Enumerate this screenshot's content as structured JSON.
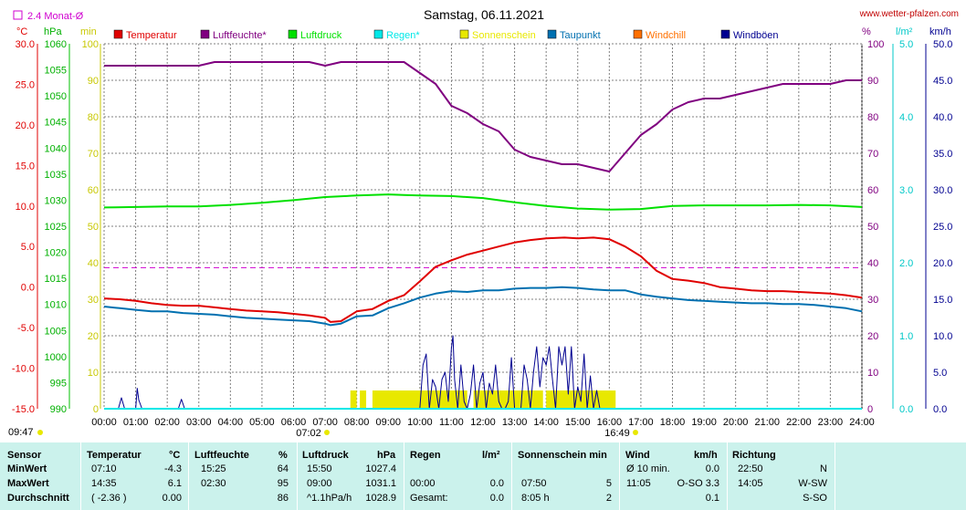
{
  "title": "Samstag, 06.11.2021",
  "website": "www.wetter-pfalzen.com",
  "monthly_avg_label": "2.4 Monat-Ø",
  "axis_units": {
    "temp": "°C",
    "pressure": "hPa",
    "minutes": "min",
    "percent": "%",
    "rain": "l/m²",
    "wind": "km/h"
  },
  "legend": [
    {
      "label": "Temperatur",
      "color": "#e00000"
    },
    {
      "label": "Luftfeuchte*",
      "color": "#800080"
    },
    {
      "label": "Luftdruck",
      "color": "#00e000"
    },
    {
      "label": "Regen*",
      "color": "#00e8e8"
    },
    {
      "label": "Sonnenschein",
      "color": "#e8e800"
    },
    {
      "label": "Taupunkt",
      "color": "#0070b0"
    },
    {
      "label": "Windchill",
      "color": "#ff7000"
    },
    {
      "label": "Windböen",
      "color": "#000090"
    }
  ],
  "x_ticks": [
    "00:00",
    "01:00",
    "02:00",
    "03:00",
    "04:00",
    "05:00",
    "06:00",
    "07:00",
    "08:00",
    "09:00",
    "10:00",
    "11:00",
    "12:00",
    "13:00",
    "14:00",
    "15:00",
    "16:00",
    "17:00",
    "18:00",
    "19:00",
    "20:00",
    "21:00",
    "22:00",
    "23:00",
    "24:00"
  ],
  "sun_markers": {
    "sunrise": "07:02",
    "sunset": "16:49"
  },
  "bottom_left_time": "09:47",
  "axes": {
    "temp_ticks": [
      "30.0",
      "25.0",
      "20.0",
      "15.0",
      "10.0",
      "5.0",
      "0.0",
      "-5.0",
      "-10.0",
      "-15.0"
    ],
    "pressure_ticks": [
      "1060",
      "1055",
      "1050",
      "1045",
      "1040",
      "1035",
      "1030",
      "1025",
      "1020",
      "1015",
      "1010",
      "1005",
      "1000",
      "995",
      "990"
    ],
    "minutes_ticks": [
      "100",
      "90",
      "80",
      "70",
      "60",
      "50",
      "40",
      "30",
      "20",
      "10",
      "0"
    ],
    "percent_ticks": [
      "100",
      "90",
      "80",
      "70",
      "60",
      "50",
      "40",
      "30",
      "20",
      "10",
      "0"
    ],
    "rain_ticks": [
      "5.0",
      "4.0",
      "3.0",
      "2.0",
      "1.0",
      "0.0"
    ],
    "wind_ticks": [
      "50.0",
      "45.0",
      "40.0",
      "35.0",
      "30.0",
      "25.0",
      "20.0",
      "15.0",
      "10.0",
      "5.0",
      "0.0"
    ]
  },
  "chart_data": {
    "type": "line",
    "x_unit": "hour",
    "x_range": [
      0,
      24
    ],
    "axes_ranges": {
      "temp": [
        -15,
        30
      ],
      "pressure": [
        990,
        1060
      ],
      "minutes": [
        0,
        100
      ],
      "humidity": [
        0,
        100
      ],
      "rain": [
        0,
        5
      ],
      "wind": [
        0,
        50
      ]
    },
    "grid": true,
    "reference_lines": [
      {
        "name": "2.4 Monat-Ø",
        "axis": "temp",
        "value": 2.4
      }
    ],
    "series": [
      {
        "name": "Temperatur",
        "axis": "temp",
        "color": "#e00000",
        "x": [
          0,
          0.5,
          1,
          1.5,
          2,
          2.5,
          3,
          3.5,
          4,
          4.5,
          5,
          5.5,
          6,
          6.5,
          7,
          7.17,
          7.5,
          8,
          8.5,
          9,
          9.5,
          10,
          10.5,
          11,
          11.5,
          12,
          12.5,
          13,
          13.5,
          14,
          14.58,
          15,
          15.5,
          16,
          16.5,
          17,
          17.5,
          18,
          18.5,
          19,
          19.5,
          20,
          20.5,
          21,
          21.5,
          22,
          22.5,
          23,
          23.5,
          24
        ],
        "y": [
          -1.4,
          -1.5,
          -1.7,
          -2.0,
          -2.2,
          -2.3,
          -2.3,
          -2.5,
          -2.7,
          -2.9,
          -3.0,
          -3.1,
          -3.3,
          -3.5,
          -3.8,
          -4.3,
          -4.2,
          -3.0,
          -2.7,
          -1.7,
          -1.0,
          0.7,
          2.5,
          3.3,
          4.0,
          4.5,
          5.0,
          5.5,
          5.8,
          6.0,
          6.1,
          6.0,
          6.1,
          5.9,
          5.0,
          3.8,
          2.0,
          1.0,
          0.8,
          0.5,
          0.0,
          -0.2,
          -0.4,
          -0.5,
          -0.5,
          -0.6,
          -0.7,
          -0.8,
          -1.0,
          -1.3
        ]
      },
      {
        "name": "Taupunkt",
        "axis": "temp",
        "color": "#0070b0",
        "x": [
          0,
          0.5,
          1,
          1.5,
          2,
          2.5,
          3,
          3.5,
          4,
          4.5,
          5,
          5.5,
          6,
          6.5,
          7,
          7.17,
          7.5,
          8,
          8.5,
          9,
          9.5,
          10,
          10.5,
          11,
          11.5,
          12,
          12.5,
          13,
          13.5,
          14,
          14.5,
          15,
          15.5,
          16,
          16.5,
          17,
          17.5,
          18,
          18.5,
          19,
          19.5,
          20,
          20.5,
          21,
          21.5,
          22,
          22.5,
          23,
          23.5,
          24
        ],
        "y": [
          -2.4,
          -2.6,
          -2.8,
          -3.0,
          -3.0,
          -3.2,
          -3.3,
          -3.4,
          -3.6,
          -3.8,
          -3.9,
          -4.0,
          -4.1,
          -4.2,
          -4.5,
          -4.7,
          -4.5,
          -3.6,
          -3.5,
          -2.6,
          -2.0,
          -1.3,
          -0.8,
          -0.5,
          -0.6,
          -0.4,
          -0.4,
          -0.2,
          -0.1,
          -0.1,
          0.0,
          -0.1,
          -0.3,
          -0.4,
          -0.4,
          -0.9,
          -1.2,
          -1.4,
          -1.6,
          -1.7,
          -1.8,
          -1.9,
          -2.0,
          -2.0,
          -2.1,
          -2.1,
          -2.2,
          -2.4,
          -2.6,
          -3.0
        ]
      },
      {
        "name": "Luftdruck",
        "axis": "pressure",
        "color": "#00e000",
        "x": [
          0,
          1,
          2,
          3,
          4,
          5,
          6,
          7,
          8,
          9,
          9.5,
          10,
          11,
          12,
          13,
          14,
          15,
          16,
          17,
          18,
          19,
          20,
          21,
          22,
          23,
          24
        ],
        "y": [
          1028.6,
          1028.7,
          1028.8,
          1028.8,
          1029.1,
          1029.5,
          1030.0,
          1030.6,
          1030.9,
          1031.1,
          1031.0,
          1030.9,
          1030.8,
          1030.4,
          1029.6,
          1028.9,
          1028.4,
          1028.2,
          1028.3,
          1028.9,
          1029.0,
          1029.0,
          1029.0,
          1029.1,
          1029.0,
          1028.7
        ]
      },
      {
        "name": "Luftfeuchte*",
        "axis": "humidity",
        "color": "#800080",
        "x": [
          0,
          1,
          2,
          3,
          3.5,
          4,
          5,
          6,
          6.5,
          7,
          7.5,
          8,
          9,
          9.5,
          10,
          10.5,
          11,
          11.5,
          12,
          12.5,
          13,
          13.5,
          14,
          14.5,
          15,
          15.5,
          16,
          16.5,
          17,
          17.5,
          18,
          18.5,
          19,
          19.5,
          20,
          20.5,
          21,
          21.5,
          22,
          22.5,
          23,
          23.5,
          24
        ],
        "y": [
          94,
          94,
          94,
          94,
          95,
          95,
          95,
          95,
          95,
          94,
          95,
          95,
          95,
          95,
          92,
          89,
          83,
          81,
          78,
          76,
          71,
          69,
          68,
          67,
          67,
          66,
          65,
          70,
          75,
          78,
          82,
          84,
          85,
          85,
          86,
          87,
          88,
          89,
          89,
          89,
          89,
          90,
          90
        ]
      },
      {
        "name": "Windböen",
        "axis": "wind",
        "color": "#000090",
        "x": [
          0,
          0.45,
          0.55,
          0.65,
          1,
          1.05,
          1.1,
          1.2,
          2,
          2.35,
          2.45,
          2.55,
          3,
          10,
          10.1,
          10.2,
          10.3,
          10.4,
          10.5,
          10.6,
          10.7,
          10.8,
          10.9,
          11,
          11.05,
          11.1,
          11.2,
          11.3,
          11.4,
          11.5,
          11.6,
          11.7,
          11.8,
          11.9,
          12,
          12.1,
          12.2,
          12.3,
          12.4,
          12.5,
          12.6,
          12.7,
          12.8,
          12.9,
          13,
          13.1,
          13.2,
          13.3,
          13.4,
          13.5,
          13.6,
          13.7,
          13.8,
          13.9,
          14,
          14.1,
          14.2,
          14.3,
          14.4,
          14.5,
          14.6,
          14.7,
          14.8,
          14.9,
          15,
          15.1,
          15.2,
          15.3,
          15.4,
          15.5,
          15.6,
          15.7,
          15.8,
          15.9,
          16,
          24
        ],
        "y": [
          0,
          0,
          1.5,
          0,
          0,
          2.8,
          1.2,
          0,
          0,
          0,
          1.3,
          0,
          0,
          0,
          6,
          7.5,
          0,
          4,
          3,
          0,
          4,
          5,
          1,
          8.3,
          10,
          4,
          0,
          6,
          1,
          0,
          2,
          6,
          0,
          3.5,
          5,
          0,
          3.5,
          2,
          6,
          1,
          0,
          0,
          1,
          7,
          0,
          0,
          0,
          6,
          4,
          0,
          5,
          8.5,
          3,
          7,
          6,
          8.5,
          4,
          0,
          8.5,
          6,
          8.5,
          2,
          8.5,
          0,
          3,
          1,
          7.5,
          0,
          4.5,
          0,
          2.5,
          0,
          0,
          0,
          0,
          0
        ]
      },
      {
        "name": "Regen*",
        "axis": "rain",
        "color": "#00e8e8",
        "x": [
          0,
          24
        ],
        "y": [
          0,
          0
        ]
      }
    ],
    "sunshine_minutes": {
      "name": "Sonnenschein",
      "axis": "minutes",
      "color": "#e8e800",
      "blocks": [
        [
          7.8,
          8.0
        ],
        [
          8.1,
          8.3
        ],
        [
          8.5,
          11.5
        ],
        [
          11.7,
          13.9
        ],
        [
          14.0,
          16.2
        ]
      ],
      "value": 5
    }
  },
  "stats": {
    "headers": {
      "sensor": "Sensor",
      "temperatur": "Temperatur",
      "temperatur_unit": "°C",
      "luftfeuchte": "Luftfeuchte",
      "luftfeuchte_unit": "%",
      "luftdruck": "Luftdruck",
      "luftdruck_unit": "hPa",
      "regen": "Regen",
      "regen_unit": "l/m²",
      "sonne": "Sonnenschein min",
      "wind": "Wind",
      "wind_unit": "km/h",
      "richtung": "Richtung"
    },
    "rows": [
      {
        "label": "MinWert",
        "temp_time": "07:10",
        "temp_val": "-4.3",
        "hum_time": "15:25",
        "hum_val": "64",
        "press_time": "15:50",
        "press_val": "1027.4",
        "rain_time": "",
        "rain_val": "",
        "sun_time": "",
        "sun_val": "",
        "wind_time": "Ø 10 min.",
        "wind_val": "0.0",
        "dir_time": "22:50",
        "dir_val": "N"
      },
      {
        "label": "MaxWert",
        "temp_time": "14:35",
        "temp_val": "6.1",
        "hum_time": "02:30",
        "hum_val": "95",
        "press_time": "09:00",
        "press_val": "1031.1",
        "rain_time": "00:00",
        "rain_val": "0.0",
        "sun_time": "07:50",
        "sun_val": "5",
        "wind_time": "11:05",
        "wind_val": "O-SO 3.3",
        "dir_time": "14:05",
        "dir_val": "W-SW"
      },
      {
        "label": "Durchschnitt",
        "temp_time": "( -2.36 )",
        "temp_val": "0.00",
        "hum_time": "",
        "hum_val": "86",
        "press_time": "^1.1hPa/h",
        "press_val": "1028.9",
        "rain_time": "Gesamt:",
        "rain_val": "0.0",
        "sun_time": "8:05 h",
        "sun_val": "2",
        "wind_time": "",
        "wind_val": "0.1",
        "dir_time": "",
        "dir_val": "S-SO"
      }
    ]
  }
}
